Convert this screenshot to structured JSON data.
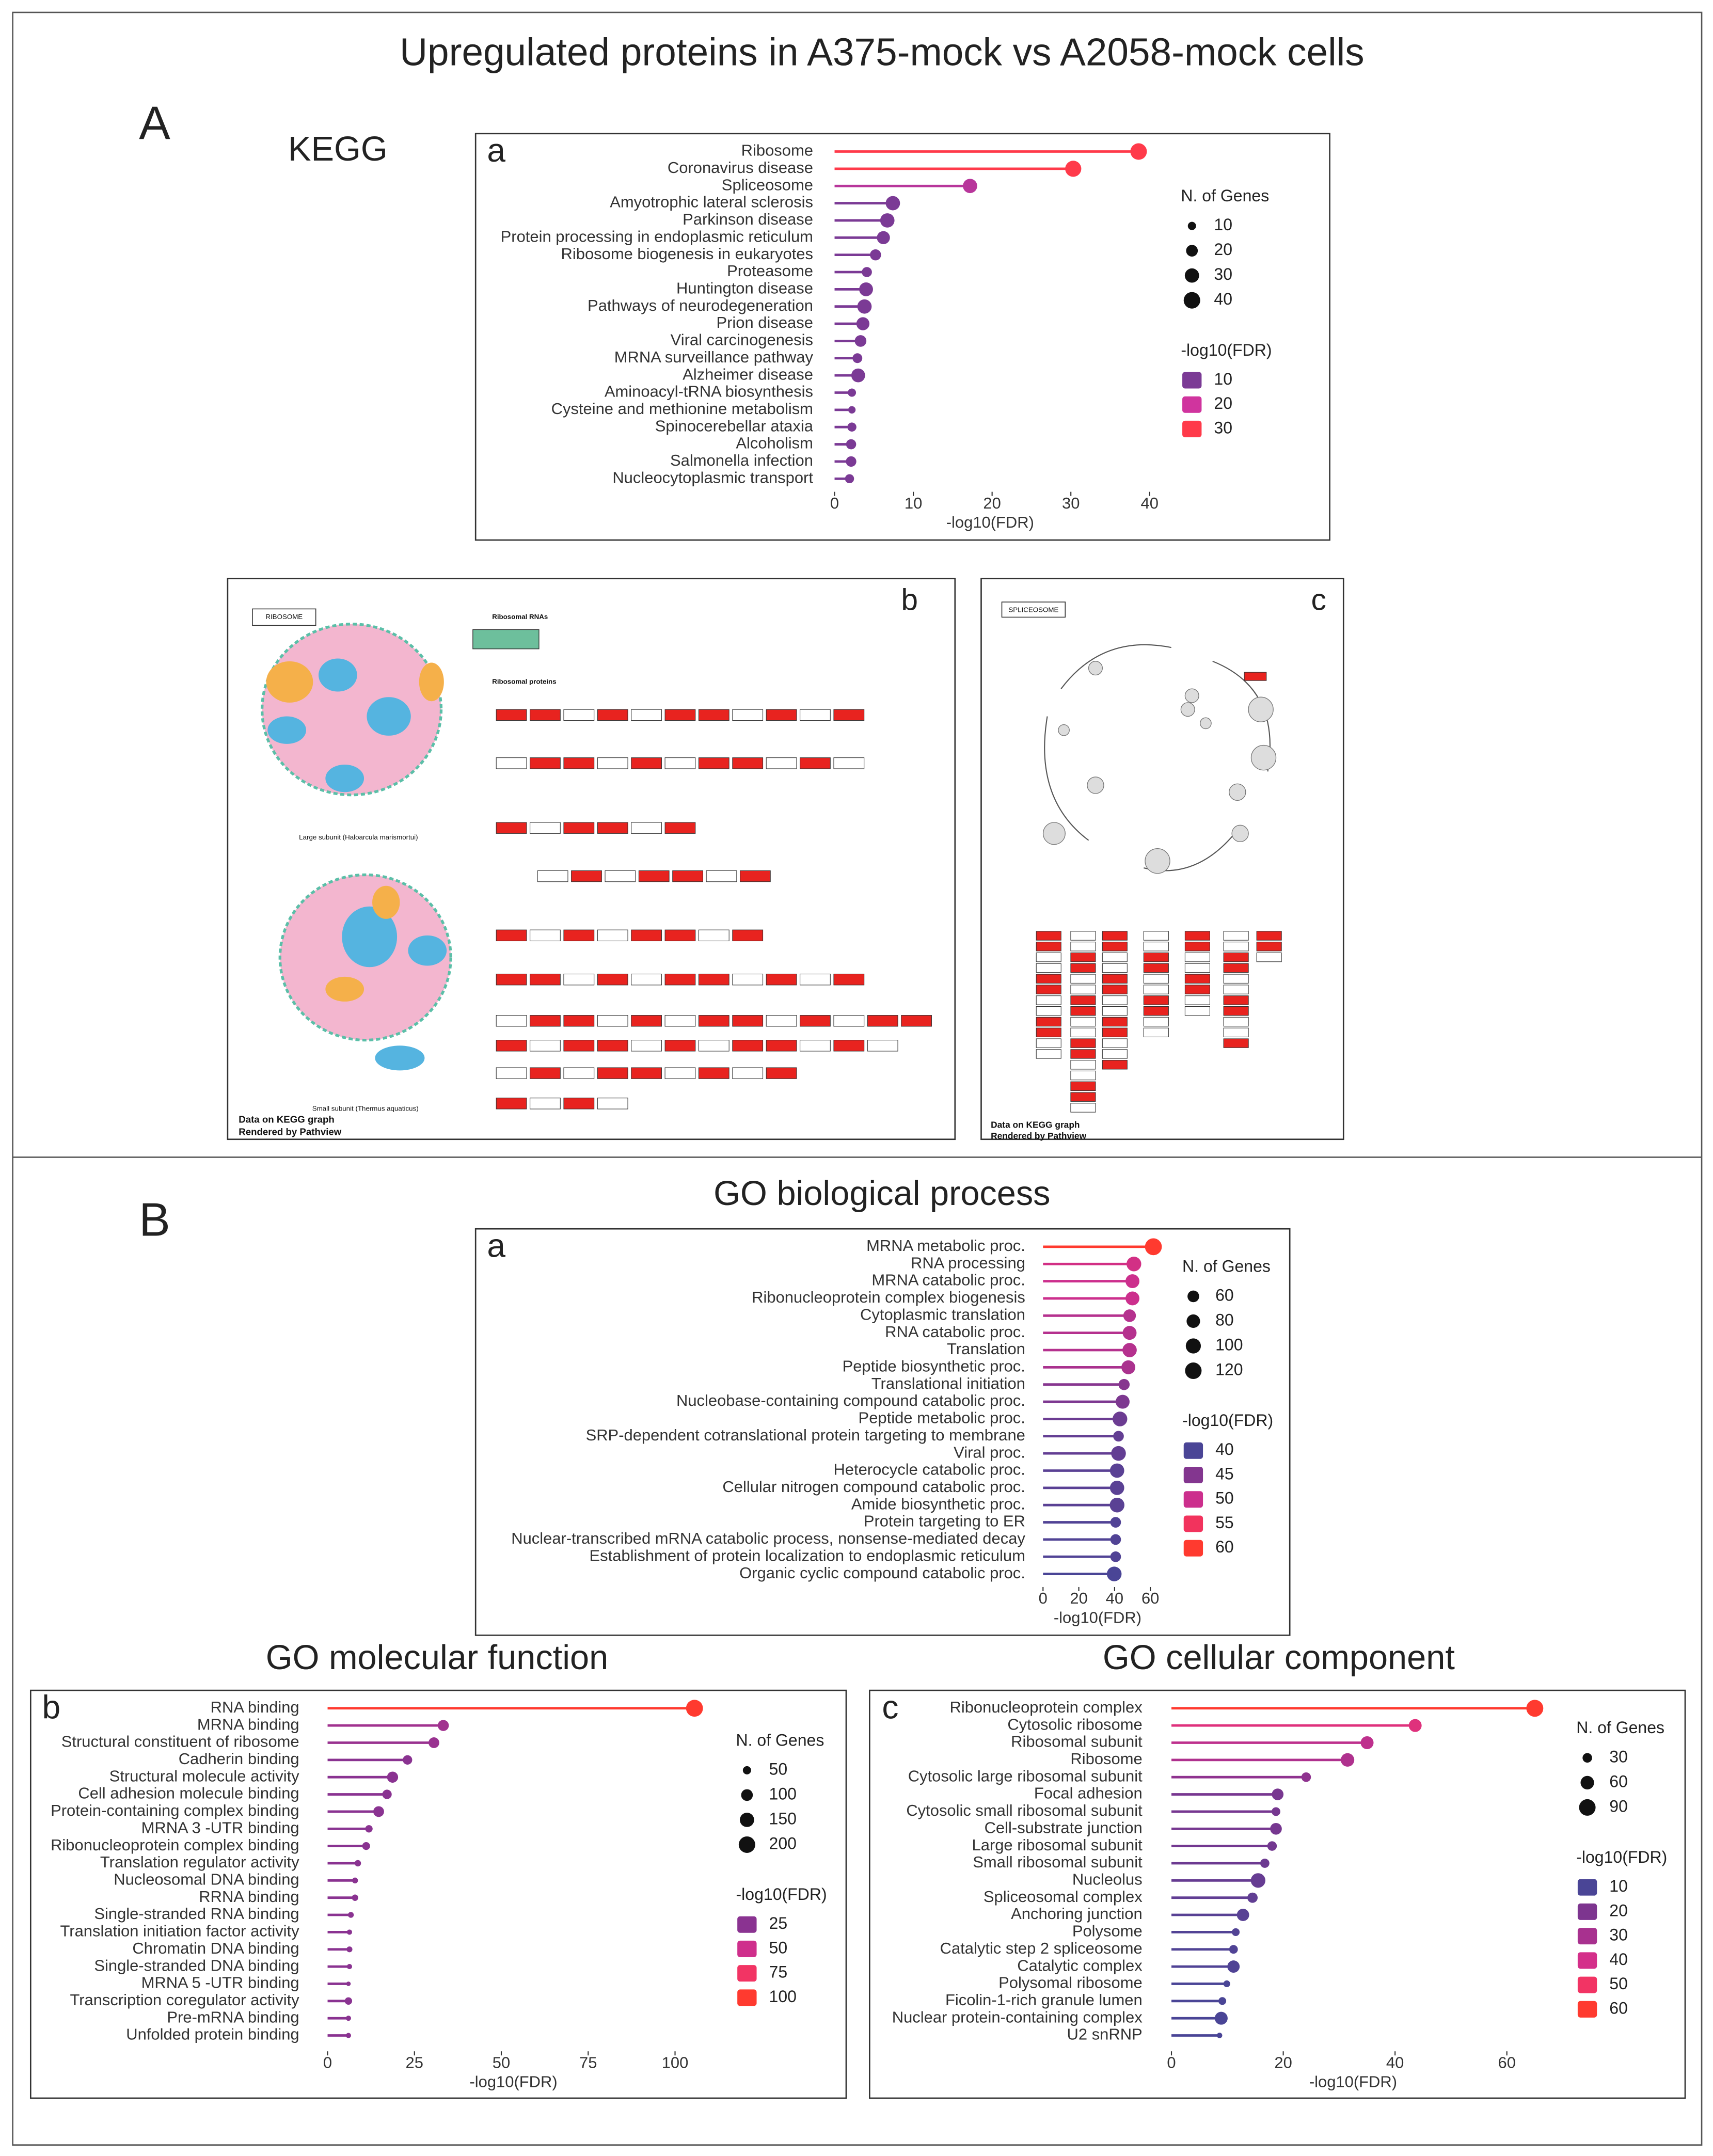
{
  "title": "Upregulated proteins in A375-mock vs A2058-mock cells",
  "section_a": "A",
  "section_b": "B",
  "kegg": "KEGG",
  "go_bp": "GO biological process",
  "go_mf": "GO molecular function",
  "go_cc": "GO cellular component",
  "pathways": [
    {
      "letter": "b",
      "name": "RIBOSOME",
      "rrna": "Ribosomal RNAs",
      "proteins": "Ribosomal proteins",
      "large": "Large subunit (Haloarcula marismortui)",
      "small": "Small subunit (Thermus aquaticus)",
      "footer1": "Data on KEGG graph",
      "footer2": "Rendered by Pathview"
    },
    {
      "letter": "c",
      "name": "SPLICEOSOME",
      "footer1": "Data on KEGG graph",
      "footer2": "Rendered by Pathview"
    }
  ],
  "chart_data": [
    {
      "type": "lollipop",
      "panel": "a",
      "xlabel": "-log10(FDR)",
      "categories": [
        "Ribosome",
        "Coronavirus disease",
        "Spliceosome",
        "Amyotrophic lateral sclerosis",
        "Parkinson disease",
        "Protein processing in endoplasmic reticulum",
        "Ribosome biogenesis in eukaryotes",
        "Proteasome",
        "Huntington disease",
        "Pathways of neurodegeneration",
        "Prion disease",
        "Viral carcinogenesis",
        "MRNA surveillance pathway",
        "Alzheimer disease",
        "Aminoacyl-tRNA biosynthesis",
        "Cysteine and methionine metabolism",
        "Spinocerebellar ataxia",
        "Alcoholism",
        "Salmonella infection",
        "Nucleocytoplasmic transport"
      ],
      "values": [
        38.6,
        30.3,
        17.2,
        7.4,
        6.7,
        6.2,
        5.2,
        4.1,
        4.0,
        3.8,
        3.6,
        3.3,
        2.9,
        3.0,
        2.2,
        2.2,
        2.2,
        2.1,
        2.1,
        1.9
      ],
      "sizes": [
        40,
        38,
        30,
        30,
        30,
        25,
        18,
        15,
        28,
        30,
        25,
        20,
        14,
        28,
        10,
        8,
        12,
        15,
        16,
        12
      ],
      "xlim": [
        -1.5,
        41
      ],
      "xticks": [
        0,
        10,
        20,
        30,
        40
      ],
      "size_legend": {
        "title": "N. of Genes",
        "values": [
          10,
          20,
          30,
          40
        ]
      },
      "color_legend": {
        "title": "-log10(FDR)",
        "stops": [
          {
            "value": 10,
            "color": "#7b3a95"
          },
          {
            "value": 20,
            "color": "#d0349e"
          },
          {
            "value": 30,
            "color": "#ff3a4a"
          }
        ]
      }
    },
    {
      "type": "lollipop",
      "panel": "a",
      "xlabel": "-log10(FDR)",
      "categories": [
        "MRNA metabolic proc.",
        "RNA processing",
        "MRNA catabolic proc.",
        "Ribonucleoprotein complex biogenesis",
        "Cytoplasmic translation",
        "RNA catabolic proc.",
        "Translation",
        "Peptide biosynthetic proc.",
        "Translational initiation",
        "Nucleobase-containing compound catabolic proc.",
        "Peptide metabolic proc.",
        "SRP-dependent cotranslational protein targeting to membrane",
        "Viral proc.",
        "Heterocycle catabolic proc.",
        "Cellular nitrogen compound catabolic proc.",
        "Amide biosynthetic proc.",
        "Protein targeting to ER",
        "Nuclear-transcribed mRNA catabolic process, nonsense-mediated decay",
        "Establishment of protein localization to endoplasmic reticulum",
        "Organic cyclic compound catabolic proc."
      ],
      "values": [
        61.7,
        50.8,
        50,
        50,
        48.4,
        48.4,
        48.4,
        47.7,
        45.3,
        44.5,
        43,
        42.2,
        42.2,
        41.4,
        41.4,
        41.4,
        40.6,
        40.6,
        40.6,
        39.8
      ],
      "sizes": [
        125,
        95,
        85,
        85,
        70,
        85,
        90,
        85,
        55,
        85,
        95,
        50,
        95,
        90,
        90,
        95,
        50,
        50,
        50,
        95
      ],
      "xlim": [
        -3,
        64
      ],
      "xticks": [
        0,
        20,
        40,
        60
      ],
      "size_legend": {
        "title": "N. of Genes",
        "values": [
          60,
          80,
          100,
          120
        ]
      },
      "color_legend": {
        "title": "-log10(FDR)",
        "stops": [
          {
            "value": 40,
            "color": "#4a4596"
          },
          {
            "value": 45,
            "color": "#83368f"
          },
          {
            "value": 50,
            "color": "#cc2f8d"
          },
          {
            "value": 55,
            "color": "#f2335d"
          },
          {
            "value": 60,
            "color": "#ff3a2f"
          }
        ]
      }
    },
    {
      "type": "lollipop",
      "panel": "b",
      "xlabel": "-log10(FDR)",
      "categories": [
        "RNA binding",
        "MRNA binding",
        "Structural constituent of ribosome",
        "Cadherin binding",
        "Structural molecule activity",
        "Cell adhesion molecule binding",
        "Protein-containing complex binding",
        "MRNA 3 -UTR binding",
        "Ribonucleoprotein complex binding",
        "Translation regulator activity",
        "Nucleosomal DNA binding",
        "RRNA binding",
        "Single-stranded RNA binding",
        "Translation initiation factor activity",
        "Chromatin DNA binding",
        "Single-stranded DNA binding",
        "MRNA 5 -UTR binding",
        "Transcription coregulator activity",
        "Pre-mRNA binding",
        "Unfolded protein binding"
      ],
      "values": [
        105.6,
        33.3,
        30.6,
        23,
        18.7,
        17.1,
        14.7,
        11.9,
        11.1,
        8.7,
        7.9,
        7.9,
        6.7,
        6.3,
        6.3,
        6.3,
        6.0,
        6.0,
        6.0,
        6.0
      ],
      "sizes": [
        210,
        90,
        85,
        65,
        90,
        65,
        85,
        40,
        45,
        30,
        25,
        30,
        25,
        20,
        25,
        20,
        15,
        40,
        20,
        20
      ],
      "xlim": [
        -3,
        110
      ],
      "xticks": [
        0,
        25,
        50,
        75,
        100
      ],
      "size_legend": {
        "title": "N. of Genes",
        "values": [
          50,
          100,
          150,
          200
        ]
      },
      "color_legend": {
        "title": "-log10(FDR)",
        "stops": [
          {
            "value": 25,
            "color": "#8a3391"
          },
          {
            "value": 50,
            "color": "#cf2f8c"
          },
          {
            "value": 75,
            "color": "#f23464"
          },
          {
            "value": 100,
            "color": "#ff3a2f"
          }
        ]
      }
    },
    {
      "type": "lollipop",
      "panel": "c",
      "xlabel": "-log10(FDR)",
      "categories": [
        "Ribonucleoprotein complex",
        "Cytosolic ribosome",
        "Ribosomal subunit",
        "Ribosome",
        "Cytosolic large ribosomal subunit",
        "Focal adhesion",
        "Cytosolic small ribosomal subunit",
        "Cell-substrate junction",
        "Large ribosomal subunit",
        "Small ribosomal subunit",
        "Nucleolus",
        "Spliceosomal complex",
        "Anchoring junction",
        "Polysome",
        "Catalytic step 2 spliceosome",
        "Catalytic complex",
        "Polysomal ribosome",
        "Ficolin-1-rich granule lumen",
        "Nuclear protein-containing complex",
        "U2 snRNP"
      ],
      "values": [
        65,
        43.6,
        35,
        31.5,
        24.1,
        19,
        18.7,
        18.7,
        18,
        16.7,
        15.5,
        14.5,
        12.8,
        11.5,
        11.1,
        11.1,
        9.9,
        9.1,
        8.9,
        8.6
      ],
      "sizes": [
        95,
        55,
        55,
        60,
        30,
        45,
        25,
        45,
        30,
        28,
        70,
        35,
        50,
        20,
        25,
        50,
        15,
        20,
        55,
        10
      ],
      "xlim": [
        -2,
        67
      ],
      "xticks": [
        0,
        20,
        40,
        60
      ],
      "size_legend": {
        "title": "N. of Genes",
        "values": [
          30,
          60,
          90
        ]
      },
      "color_legend": {
        "title": "-log10(FDR)",
        "stops": [
          {
            "value": 10,
            "color": "#4a4596"
          },
          {
            "value": 20,
            "color": "#7d358f"
          },
          {
            "value": 30,
            "color": "#a8318f"
          },
          {
            "value": 40,
            "color": "#d42f8a"
          },
          {
            "value": 50,
            "color": "#f23464"
          },
          {
            "value": 60,
            "color": "#ff3a2f"
          }
        ]
      }
    }
  ]
}
